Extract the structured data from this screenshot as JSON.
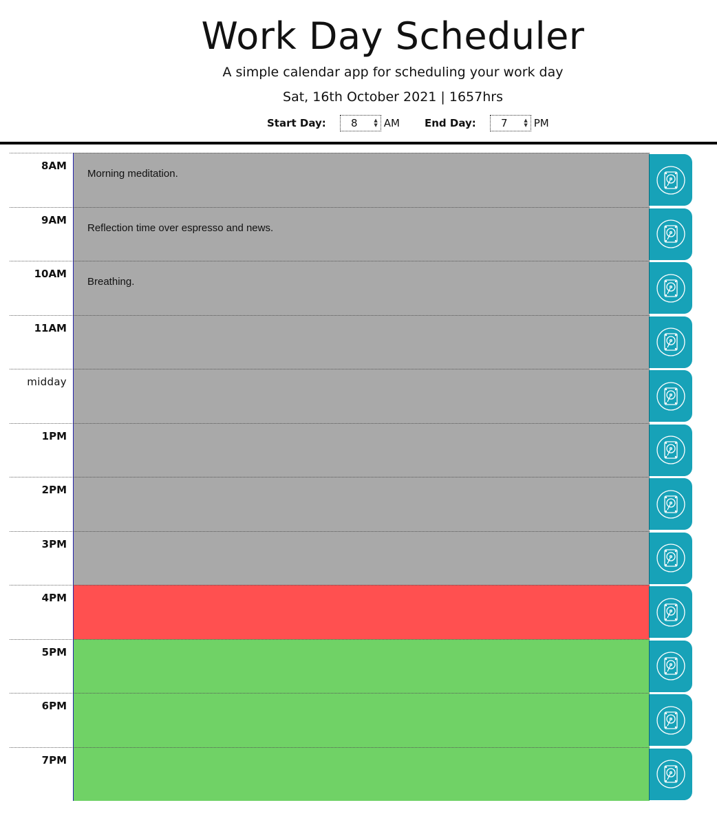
{
  "header": {
    "title": "Work Day Scheduler",
    "subtitle": "A simple calendar app for scheduling your work day",
    "datetime": "Sat, 16th October 2021 | 1657hrs"
  },
  "controls": {
    "start_label": "Start Day:",
    "start_value": "8",
    "start_ampm": "AM",
    "end_label": "End Day:",
    "end_value": "7",
    "end_ampm": "PM"
  },
  "colors": {
    "past": "#a9a9a9",
    "present": "#ff5050",
    "future": "#70d266",
    "save_button": "#17a2b8"
  },
  "rows": [
    {
      "hour": "8AM",
      "text": "Morning meditation.",
      "state": "past"
    },
    {
      "hour": "9AM",
      "text": "Reflection time over espresso and news.",
      "state": "past"
    },
    {
      "hour": "10AM",
      "text": "Breathing.",
      "state": "past"
    },
    {
      "hour": "11AM",
      "text": "",
      "state": "past"
    },
    {
      "hour": "midday",
      "text": "",
      "state": "past"
    },
    {
      "hour": "1PM",
      "text": "",
      "state": "past"
    },
    {
      "hour": "2PM",
      "text": "",
      "state": "past"
    },
    {
      "hour": "3PM",
      "text": "",
      "state": "past"
    },
    {
      "hour": "4PM",
      "text": "",
      "state": "present"
    },
    {
      "hour": "5PM",
      "text": "",
      "state": "future"
    },
    {
      "hour": "6PM",
      "text": "",
      "state": "future"
    },
    {
      "hour": "7PM",
      "text": "",
      "state": "future"
    }
  ],
  "icons": {
    "save": "save-disk-icon",
    "stepper": "up-down-arrows-icon"
  }
}
